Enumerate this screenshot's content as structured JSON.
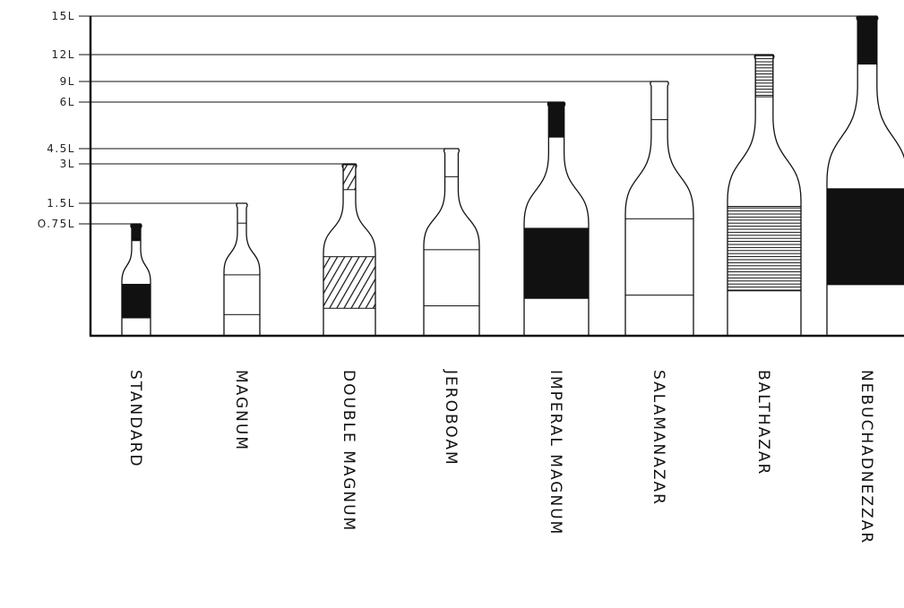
{
  "chart_data": {
    "type": "bar",
    "title": "",
    "xlabel": "",
    "ylabel": "",
    "grid": false,
    "ylim": [
      0,
      15
    ],
    "y_ticks": [
      {
        "value": 0.75,
        "label": "O.75L"
      },
      {
        "value": 1.5,
        "label": "1.5L"
      },
      {
        "value": 3,
        "label": "3L"
      },
      {
        "value": 4.5,
        "label": "4.5L"
      },
      {
        "value": 6,
        "label": "6L"
      },
      {
        "value": 9,
        "label": "9L"
      },
      {
        "value": 12,
        "label": "12L"
      },
      {
        "value": 15,
        "label": "15L"
      }
    ],
    "categories": [
      "STANDARD",
      "MAGNUM",
      "DOUBLE MAGNUM",
      "JEROBOAM",
      "IMPERAL MAGNUM",
      "SALAMANAZAR",
      "BALTHAZAR",
      "NEBUCHADNEZZAR"
    ],
    "values": [
      0.75,
      1.5,
      3,
      4.5,
      6,
      9,
      12,
      15
    ],
    "label_styles": [
      "solid",
      "outline",
      "hatched",
      "outline",
      "solid",
      "outline",
      "striped",
      "solid"
    ],
    "cap_styles": [
      "solid",
      "outline",
      "hatched",
      "outline",
      "solid",
      "outline",
      "striped",
      "solid"
    ],
    "colors": {
      "ink": "#111111",
      "paper": "#ffffff"
    }
  }
}
